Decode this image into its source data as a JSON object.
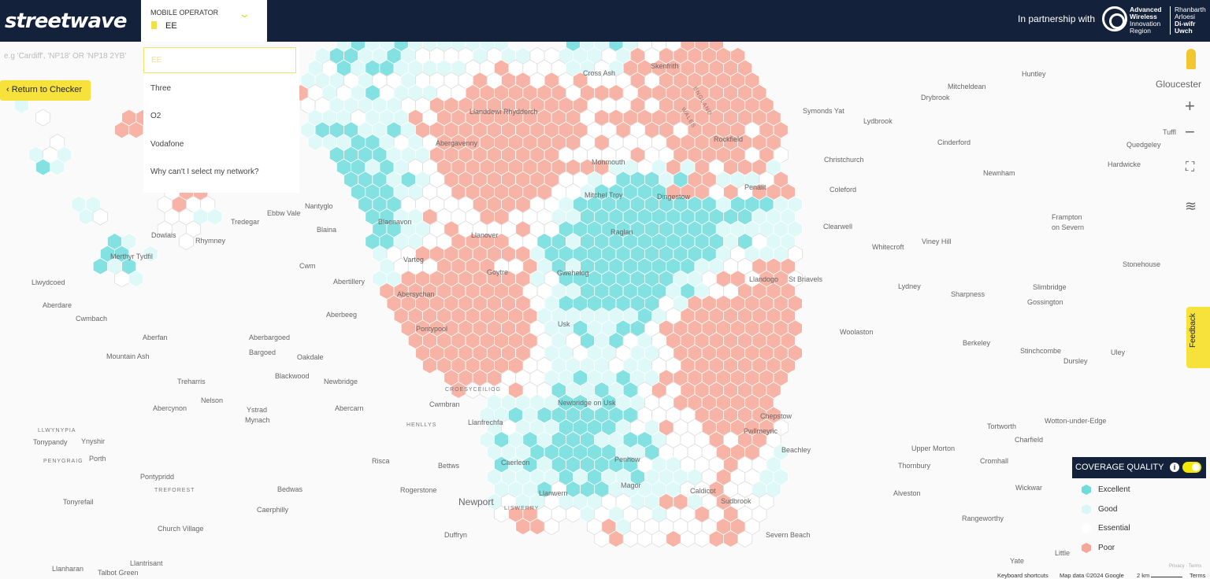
{
  "header": {
    "logo": "streetwave",
    "operator_label": "MOBILE OPERATOR",
    "operator_value": "EE",
    "partner_text": "In partnership with",
    "partner_logo_en": [
      "Advanced",
      "Wireless",
      "Innovation",
      "Region"
    ],
    "partner_logo_cy": [
      "Rhanbarth",
      "Arloesi",
      "Di-wifr",
      "Uwch"
    ]
  },
  "search": {
    "placeholder": "e.g 'Cardiff', 'NP18' OR 'NP18 2YB'"
  },
  "return_button": "Return to Checker",
  "operator_dropdown": {
    "selected": "EE",
    "options": [
      "Three",
      "O2",
      "Vodafone"
    ],
    "help_link": "Why can't I select my network?"
  },
  "map_controls": {
    "zoom_in": "+",
    "zoom_out": "−",
    "fullscreen": "⛶",
    "layers": "≋",
    "feedback": "Feedback"
  },
  "legend": {
    "title": "COVERAGE QUALITY",
    "info": "i",
    "toggle_on": true,
    "items": [
      {
        "label": "Excellent",
        "color": "#6fdcdc"
      },
      {
        "label": "Good",
        "color": "#d9f7f7"
      },
      {
        "label": "Essential",
        "color": "#ffffff"
      },
      {
        "label": "Poor",
        "color": "#f6a797"
      }
    ]
  },
  "footer": {
    "shortcuts": "Keyboard shortcuts",
    "map_data": "Map data ©2024 Google",
    "scale": "2 km",
    "terms": "Terms",
    "privacy": "Privacy · Terms"
  },
  "places": [
    "Huntley",
    "Mitcheldean",
    "Drybrook",
    "Gloucester",
    "Symonds Yat",
    "Lydbrook",
    "Tuffl",
    "Cinderford",
    "Quedgeley",
    "Christchurch",
    "Hardwicke",
    "Newnham",
    "Coleford",
    "Clearwell",
    "Frampton",
    "on Severn",
    "Whitecroft",
    "Viney Hill",
    "Stonehouse",
    "Lydney",
    "Sharpness",
    "Slimbridge",
    "Gossington",
    "Woolaston",
    "Berkeley",
    "Stinchcombe",
    "Dursley",
    "Uley",
    "Tortworth",
    "Wotton-under-Edge",
    "Charfield",
    "Upper Morton",
    "Thornbury",
    "Cromhall",
    "Alveston",
    "Wickwar",
    "Rangeworthy",
    "Little",
    "Yate",
    "Severn Beach",
    "Chepstow",
    "Beachley",
    "Sudbrook",
    "Newport",
    "Llanwern",
    "LISWERRY",
    "Rogerstone",
    "Duffryn",
    "Caerleon",
    "Bettws",
    "Risca",
    "Bedwas",
    "Caerphilly",
    "Church Village",
    "Llantrisant",
    "Talbot Green",
    "Llanharan",
    "Tonyrefail",
    "TREFOREST",
    "Pontypridd",
    "Porth",
    "PENYGRAIG",
    "Ynyshir",
    "Tonypandy",
    "LLWYNYPIA",
    "Abercynon",
    "Nelson",
    "Ystrad",
    "Mynach",
    "Abercarn",
    "Cwmbran",
    "CROESYCEILIOG",
    "HENLLYS",
    "Llanfrechfa",
    "Treharris",
    "Blackwood",
    "Newbridge",
    "Mountain Ash",
    "Bargoed",
    "Oakdale",
    "Aberfan",
    "Aberbargoed",
    "Pontypool",
    "Aberbeeg",
    "Cwmbach",
    "Aberdare",
    "Llwydcoed",
    "Abersychan",
    "Abertillery",
    "Cwm",
    "Varteg",
    "Blaina",
    "Blaenavon",
    "Nantyglo",
    "Ebbw Vale",
    "Tredegar",
    "Rhymney",
    "Gwehelog",
    "Usk",
    "Cross Ash",
    "Skenfrith",
    "ENGLAND",
    "WALES",
    "Llandogo",
    "St Briavels",
    "Penallt",
    "Dingestow",
    "Newbridge on Usk",
    "Penhow",
    "Pwllmeyric",
    "Magor",
    "Caldicot",
    "Raglan",
    "Goytre",
    "Llanover",
    "Abergavenny",
    "Merthyr Tydfil",
    "Dowlais",
    "Llanddewi Rhydderch",
    "Rockfield",
    "Mitchel Troy",
    "Monmouth"
  ]
}
